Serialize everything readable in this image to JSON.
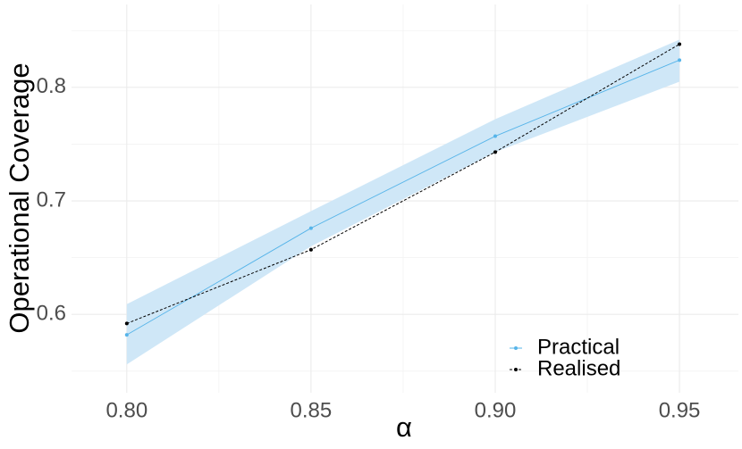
{
  "chart_data": {
    "type": "line",
    "x_label": "α",
    "y_label": "Operational Coverage",
    "x": [
      0.8,
      0.85,
      0.9,
      0.95
    ],
    "series": [
      {
        "name": "Practical",
        "color": "#56b4e9",
        "values": [
          0.582,
          0.676,
          0.757,
          0.824
        ],
        "lower": [
          0.556,
          0.66,
          0.743,
          0.805
        ],
        "upper": [
          0.609,
          0.691,
          0.772,
          0.842
        ],
        "band_color": "#cfe7f7",
        "dash": false
      },
      {
        "name": "Realised",
        "color": "#000000",
        "values": [
          0.592,
          0.657,
          0.743,
          0.838
        ],
        "dash": true
      }
    ],
    "xlim": [
      0.785,
      0.966
    ],
    "ylim": [
      0.531,
      0.873
    ],
    "xticks": [
      {
        "value": 0.8,
        "label": "0.80"
      },
      0.85,
      {
        "value": 0.9,
        "label": "0.90"
      },
      0.95
    ],
    "yticks": [
      0.6,
      0.7,
      0.8
    ],
    "grid": true,
    "legend": "bottom-right"
  }
}
